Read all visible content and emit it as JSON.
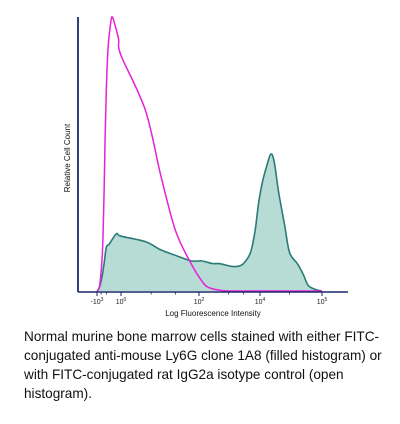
{
  "chart_data": {
    "type": "area",
    "xlabel": "Log Fluorescence Intensity",
    "ylabel": "Relative Cell Count",
    "xscale": "biexponential",
    "xticks": [
      {
        "value": -1000,
        "base": "-10",
        "exp": "3"
      },
      {
        "value": 0,
        "base": "10",
        "exp": "0"
      },
      {
        "value": 100,
        "base": "10",
        "exp": "2"
      },
      {
        "value": 10000,
        "base": "10",
        "exp": "4"
      },
      {
        "value": 100000,
        "base": "10",
        "exp": "5"
      }
    ],
    "ylim": [
      0,
      100
    ],
    "grid": false,
    "series": [
      {
        "fill": true,
        "color": "#2a7a78",
        "fill_color": "#b7dcd6",
        "points": [
          [
            -1000,
            0
          ],
          [
            -800,
            0.5
          ],
          [
            -600,
            2
          ],
          [
            -400,
            6
          ],
          [
            -300,
            10
          ],
          [
            -200,
            16
          ],
          [
            -120,
            17
          ],
          [
            -60,
            19
          ],
          [
            -20,
            21
          ],
          [
            0,
            20
          ],
          [
            15,
            18
          ],
          [
            30,
            15
          ],
          [
            50,
            13
          ],
          [
            80,
            11
          ],
          [
            120,
            11
          ],
          [
            200,
            10.5
          ],
          [
            300,
            10
          ],
          [
            500,
            10
          ],
          [
            800,
            9.5
          ],
          [
            1200,
            9
          ],
          [
            2000,
            9
          ],
          [
            3000,
            10
          ],
          [
            5000,
            14
          ],
          [
            7000,
            22
          ],
          [
            9000,
            32
          ],
          [
            11000,
            40
          ],
          [
            13000,
            46
          ],
          [
            15000,
            50
          ],
          [
            17000,
            47
          ],
          [
            20000,
            36
          ],
          [
            25000,
            24
          ],
          [
            30000,
            14
          ],
          [
            40000,
            10
          ],
          [
            50000,
            6
          ],
          [
            60000,
            2
          ],
          [
            80000,
            0.5
          ],
          [
            100000,
            0
          ]
        ]
      },
      {
        "fill": false,
        "color": "#e621d8",
        "points": [
          [
            -1000,
            0
          ],
          [
            -800,
            0.5
          ],
          [
            -600,
            3
          ],
          [
            -400,
            14
          ],
          [
            -300,
            36
          ],
          [
            -250,
            56
          ],
          [
            -200,
            74
          ],
          [
            -150,
            88
          ],
          [
            -100,
            96
          ],
          [
            -70,
            100
          ],
          [
            -40,
            98
          ],
          [
            -10,
            92
          ],
          [
            0,
            86
          ],
          [
            15,
            66
          ],
          [
            30,
            42
          ],
          [
            50,
            22
          ],
          [
            80,
            10
          ],
          [
            120,
            4
          ],
          [
            200,
            1.5
          ],
          [
            400,
            0.5
          ],
          [
            1000,
            0
          ],
          [
            10000,
            0
          ],
          [
            100000,
            0
          ]
        ]
      }
    ]
  },
  "caption": "Normal murine bone marrow cells stained with either FITC-conjugated anti-mouse Ly6G clone 1A8 (filled histogram) or with FITC-conjugated rat IgG2a isotype control (open histogram)."
}
